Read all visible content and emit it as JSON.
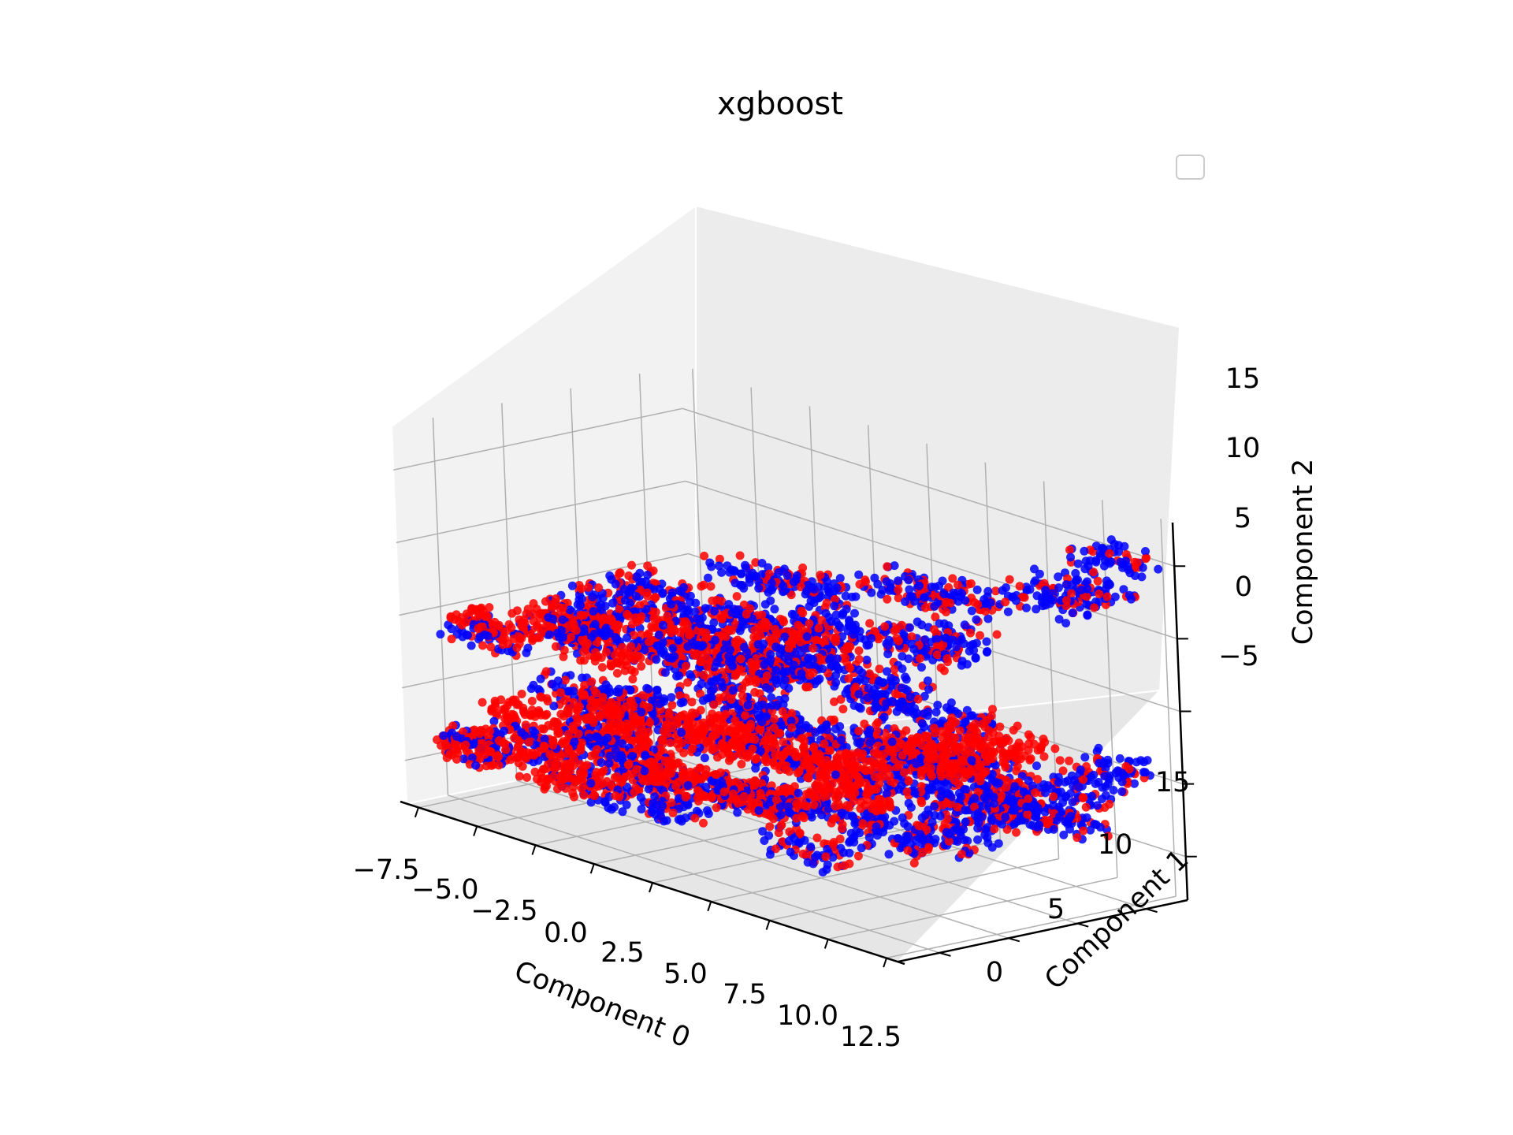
{
  "chart_data": {
    "type": "scatter",
    "projection": "3d",
    "title": "xgboost",
    "xlabel": "Component 0",
    "ylabel": "Component 1",
    "zlabel": "Component 2",
    "x_ticks": [
      "−7.5",
      "−5.0",
      "−2.5",
      "0.0",
      "2.5",
      "5.0",
      "7.5",
      "10.0",
      "12.5"
    ],
    "y_ticks": [
      "0",
      "5",
      "10",
      "15"
    ],
    "z_ticks": [
      "−5",
      "0",
      "5",
      "10",
      "15"
    ],
    "xlim": [
      -8,
      13
    ],
    "ylim": [
      -3,
      18
    ],
    "zlim": [
      -8,
      18
    ],
    "grid": true,
    "legend": "upper right (empty)",
    "colors": {
      "class_a": "#0000ff",
      "class_b": "#ff0000",
      "pane": "#f2f2f2",
      "grid": "#b0b0b0"
    },
    "series": [
      {
        "color": "#0000ff",
        "note_range": "lower slab",
        "x": [
          -6.5,
          -5,
          -3,
          -1,
          1,
          3,
          5,
          7,
          9,
          10.5,
          -6,
          -4,
          -2,
          0,
          2,
          4,
          6,
          8,
          9.5,
          -5.5,
          -3.5,
          -1.5,
          0.5,
          2.5,
          4.5,
          6.5,
          8.5,
          10,
          -4.5,
          -2.5,
          1.5,
          3.5,
          5.5,
          7.5,
          9,
          11,
          11.5,
          12
        ],
        "y": [
          0,
          1,
          2,
          1,
          0,
          3,
          2,
          1,
          4,
          5,
          6,
          5,
          7,
          4,
          6,
          8,
          5,
          7,
          9,
          10,
          8,
          12,
          9,
          11,
          13,
          10,
          12,
          14,
          15,
          14,
          16,
          13,
          15,
          12,
          11,
          10,
          13,
          15
        ],
        "z": [
          -4,
          -3,
          -5,
          -2,
          -4,
          -3,
          -2,
          -4,
          -3,
          -2,
          -1,
          -3,
          -2,
          -4,
          -1,
          -2,
          -3,
          -1,
          -2,
          -3,
          -1,
          -2,
          0,
          -1,
          -2,
          0,
          -1,
          -3,
          -2,
          1,
          0,
          -1,
          1,
          0,
          -2,
          -1,
          0,
          1
        ]
      },
      {
        "color": "#0000ff",
        "note_range": "upper slab",
        "x": [
          -6,
          -4,
          -2,
          0,
          2,
          4,
          6,
          8,
          -5,
          -3,
          -1,
          1,
          3,
          5,
          7,
          9,
          -4.5,
          -1.5,
          1.5,
          4.5,
          7.5,
          10,
          11,
          12
        ],
        "y": [
          0,
          2,
          1,
          3,
          2,
          4,
          3,
          5,
          6,
          5,
          7,
          6,
          8,
          7,
          9,
          8,
          10,
          12,
          11,
          13,
          12,
          14,
          15,
          16
        ],
        "z": [
          4,
          5,
          6,
          5,
          7,
          6,
          8,
          7,
          5,
          7,
          6,
          8,
          7,
          9,
          8,
          10,
          6,
          8,
          9,
          10,
          11,
          12,
          13,
          15
        ]
      },
      {
        "color": "#ff0000",
        "note_range": "both slabs",
        "x": [
          -6.5,
          -5,
          -3,
          -1,
          1,
          3,
          5,
          7,
          -6,
          -4,
          -2,
          0,
          2,
          4,
          6,
          8,
          9,
          10,
          -5.5,
          -3.5,
          -1.5,
          0.5,
          2.5,
          4.5
        ],
        "y": [
          0,
          1,
          0,
          2,
          1,
          3,
          2,
          4,
          3,
          5,
          4,
          6,
          5,
          7,
          6,
          8,
          9,
          10,
          0,
          2,
          1,
          3,
          4,
          5
        ],
        "z": [
          -4,
          -3,
          -4,
          -3,
          -2,
          -3,
          -2,
          -1,
          -2,
          -1,
          -2,
          -1,
          0,
          -1,
          0,
          1,
          2,
          3,
          5,
          6,
          5,
          7,
          6,
          8
        ]
      }
    ]
  }
}
